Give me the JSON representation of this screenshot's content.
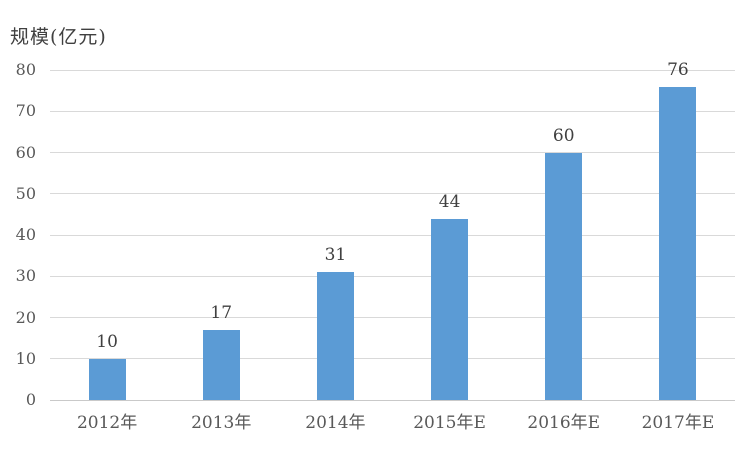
{
  "chart_data": {
    "type": "bar",
    "title": "规模(亿元)",
    "categories": [
      "2012年",
      "2013年",
      "2014年",
      "2015年E",
      "2016年E",
      "2017年E"
    ],
    "values": [
      10,
      17,
      31,
      44,
      60,
      76
    ],
    "data_labels": [
      "10",
      "17",
      "31",
      "44",
      "60",
      "76"
    ],
    "yticks": [
      0,
      10,
      20,
      30,
      40,
      50,
      60,
      70,
      80
    ],
    "ylim": [
      0,
      80
    ],
    "xlabel": "",
    "ylabel": "规模(亿元)",
    "grid": true,
    "legend_position": "none",
    "colors": {
      "bar": "#5B9BD5",
      "gridline": "#D9D9D9",
      "axis_line": "#C9C9C9",
      "value_label": "#404040",
      "tick_label": "#595959",
      "title": "#404040",
      "background": "#FFFFFF"
    }
  }
}
